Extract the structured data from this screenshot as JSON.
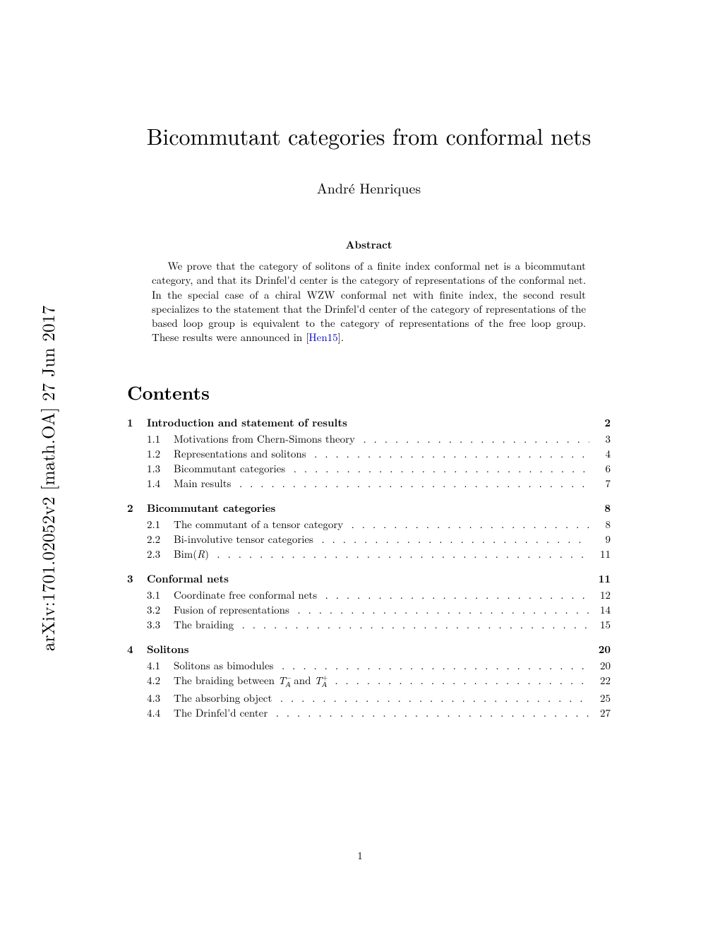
{
  "arxiv_id": "arXiv:1701.02052v2  [math.OA]  27 Jun 2017",
  "title": "Bicommutant categories from conformal nets",
  "author": "André Henriques",
  "abstract_heading": "Abstract",
  "abstract_pre": "We prove that the category of solitons of a finite index conformal net is a bicommutant category, and that its Drinfel'd center is the category of representations of the conformal net. In the special case of a chiral WZW conformal net with finite index, the second result specializes to the statement that the Drinfel'd center of the category of representations of the based loop group is equivalent to the category of representations of the free loop group. These results were announced in [",
  "abstract_cite": "Hen15",
  "abstract_post": "].",
  "contents_heading": "Contents",
  "toc": [
    {
      "num": "1",
      "title": "Introduction and statement of results",
      "page": "2",
      "subs": [
        {
          "num": "1.1",
          "title": "Motivations from Chern-Simons theory",
          "page": "3"
        },
        {
          "num": "1.2",
          "title": "Representations and solitons",
          "page": "4"
        },
        {
          "num": "1.3",
          "title": "Bicommutant categories",
          "page": "6"
        },
        {
          "num": "1.4",
          "title": "Main results",
          "page": "7"
        }
      ]
    },
    {
      "num": "2",
      "title": "Bicommutant categories",
      "page": "8",
      "subs": [
        {
          "num": "2.1",
          "title": "The commutant of a tensor category",
          "page": "8"
        },
        {
          "num": "2.2",
          "title": "Bi-involutive tensor categories",
          "page": "9"
        },
        {
          "num": "2.3",
          "title": "Bim(R)",
          "title_html": "Bim(<i>R</i>)",
          "page": "11"
        }
      ]
    },
    {
      "num": "3",
      "title": "Conformal nets",
      "page": "11",
      "subs": [
        {
          "num": "3.1",
          "title": "Coordinate free conformal nets",
          "page": "12"
        },
        {
          "num": "3.2",
          "title": "Fusion of representations",
          "page": "14"
        },
        {
          "num": "3.3",
          "title": "The braiding",
          "page": "15"
        }
      ]
    },
    {
      "num": "4",
      "title": "Solitons",
      "page": "20",
      "subs": [
        {
          "num": "4.1",
          "title": "Solitons as bimodules",
          "page": "20"
        },
        {
          "num": "4.2",
          "title": "The braiding between T−A and T+A",
          "title_html": "The braiding between <span class='math-T'>T</span><sup>−</sup><sub style='margin-left:-8px;'><span class='mathcal'>A</span></sub> and <span class='math-T'>T</span><sup>+</sup><sub style='margin-left:-8px;'><span class='mathcal'>A</span></sub>",
          "page": "22"
        },
        {
          "num": "4.3",
          "title": "The absorbing object",
          "page": "25"
        },
        {
          "num": "4.4",
          "title": "The Drinfel'd center",
          "page": "27"
        }
      ]
    }
  ],
  "page_number": "1",
  "colors": {
    "background": "#ffffff",
    "text": "#000000",
    "link": "#0000cc"
  },
  "typography": {
    "title_fontsize": 32,
    "author_fontsize": 20,
    "abstract_fontsize": 15,
    "contents_heading_fontsize": 26,
    "toc_fontsize": 15,
    "body_font": "Latin Modern Roman / Computer Modern"
  }
}
